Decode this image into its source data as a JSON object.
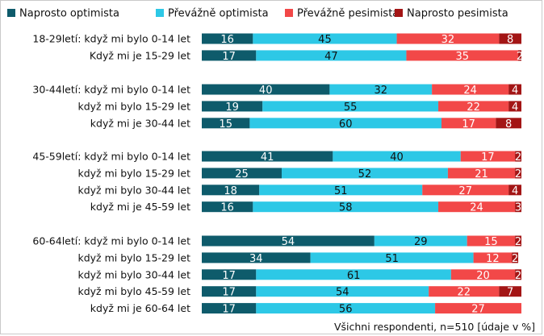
{
  "chart_data": {
    "type": "bar",
    "orientation": "horizontal",
    "stacked": "percent",
    "series": [
      {
        "name": "Naprosto optimista",
        "color": "#0e5b6b",
        "values": [
          16,
          17,
          40,
          19,
          15,
          41,
          25,
          18,
          16,
          54,
          34,
          17,
          17,
          17
        ]
      },
      {
        "name": "Převážně optimista",
        "color": "#2dc8e6",
        "values": [
          45,
          47,
          32,
          55,
          60,
          40,
          52,
          51,
          58,
          29,
          51,
          61,
          54,
          56
        ]
      },
      {
        "name": "Převážně pesimista",
        "color": "#f24848",
        "values": [
          32,
          35,
          24,
          22,
          17,
          17,
          21,
          27,
          24,
          15,
          12,
          20,
          22,
          27
        ]
      },
      {
        "name": "Naprosto pesimista",
        "color": "#a31515",
        "values": [
          8,
          2,
          4,
          4,
          8,
          2,
          2,
          4,
          3,
          2,
          2,
          2,
          7,
          null
        ]
      }
    ],
    "groups": [
      {
        "rows": [
          {
            "label": "18-29letí: když mi bylo 0-14 let",
            "index": 0
          },
          {
            "label": "Když mi je 15-29 let",
            "index": 1
          }
        ]
      },
      {
        "rows": [
          {
            "label": "30-44letí: když mi bylo 0-14 let",
            "index": 2
          },
          {
            "label": "když mi bylo 15-29 let",
            "index": 3
          },
          {
            "label": "když mi je 30-44 let",
            "index": 4
          }
        ]
      },
      {
        "rows": [
          {
            "label": "45-59letí: když mi bylo 0-14 let",
            "index": 5
          },
          {
            "label": "když mi bylo 15-29 let",
            "index": 6
          },
          {
            "label": "když mi bylo 30-44 let",
            "index": 7
          },
          {
            "label": "když mi je 45-59 let",
            "index": 8
          }
        ]
      },
      {
        "rows": [
          {
            "label": "60-64letí: když mi bylo 0-14 let",
            "index": 9
          },
          {
            "label": "když mi bylo 15-29 let",
            "index": 10
          },
          {
            "label": "když mi bylo 30-44 let",
            "index": 11
          },
          {
            "label": "když mi bylo 45-59 let",
            "index": 12
          },
          {
            "label": "když mi je 60-64 let",
            "index": 13
          }
        ]
      }
    ],
    "xlim": [
      0,
      100
    ],
    "legend": "top",
    "grid": false,
    "footnote": "Všichni respondenti, n=510 [údaje v %]"
  }
}
